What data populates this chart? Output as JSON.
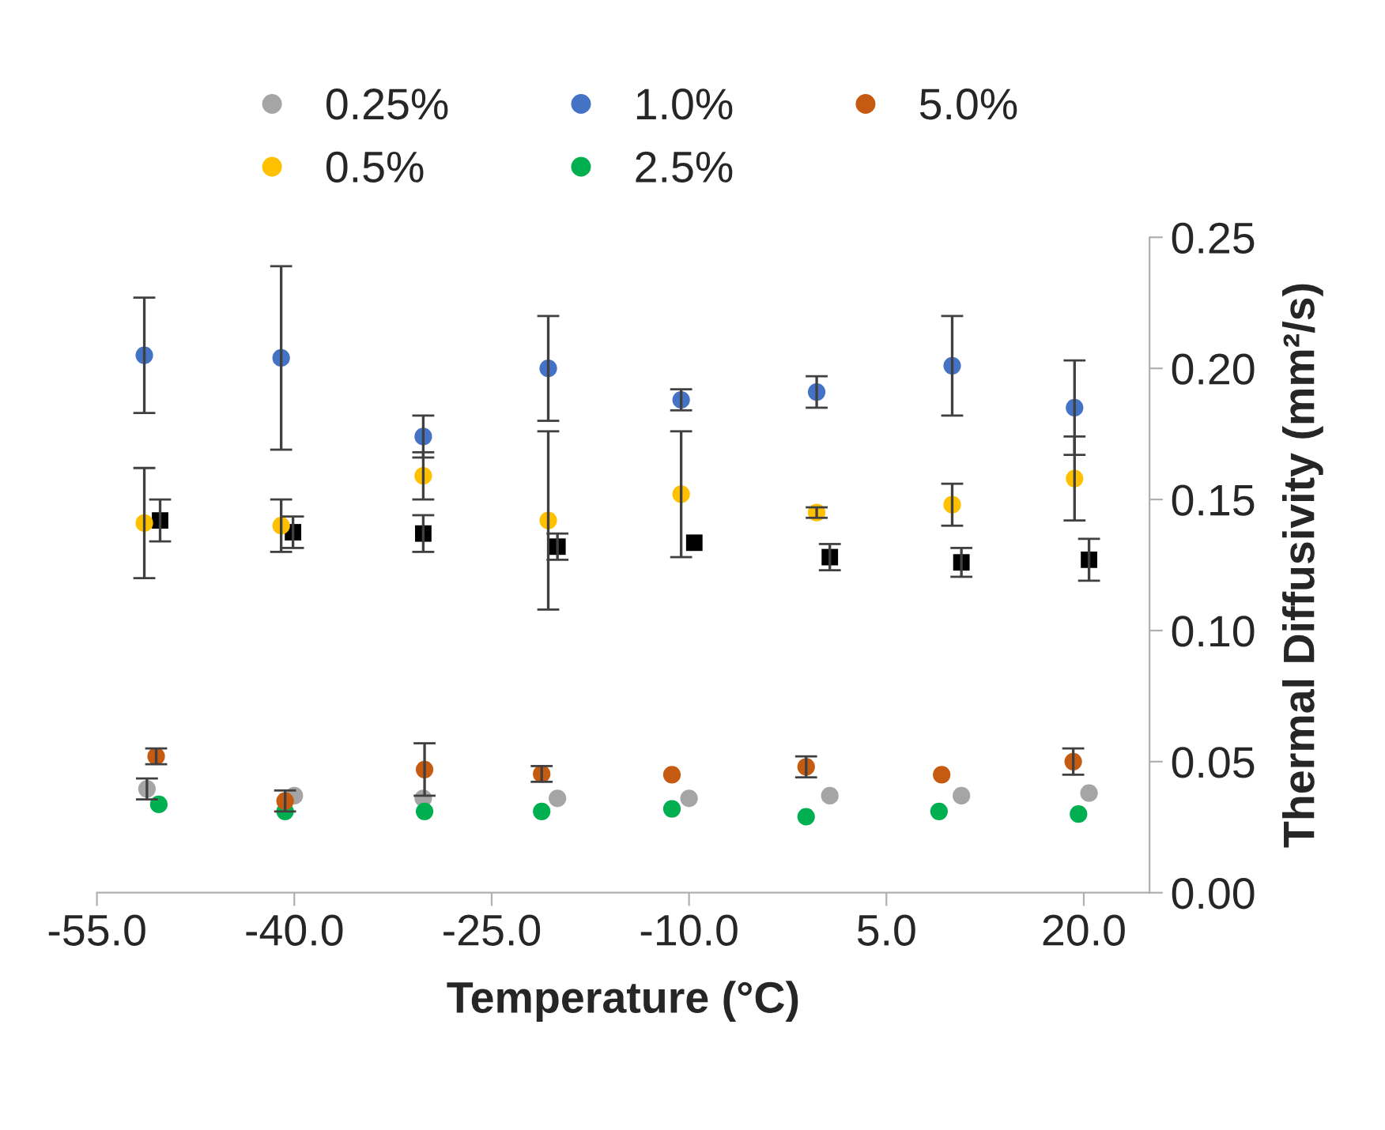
{
  "chart_data": {
    "type": "scatter",
    "xlabel": "Temperature (°C)",
    "ylabel": "Thermal Diffusivity (mm²/s)",
    "xlim": [
      -55,
      25
    ],
    "xticks": [
      {
        "value": -55,
        "label": "-55.0"
      },
      {
        "value": -40,
        "label": "-40.0"
      },
      {
        "value": -25,
        "label": "-25.0"
      },
      {
        "value": -10,
        "label": "-10.0"
      },
      {
        "value": 5,
        "label": "5.0"
      },
      {
        "value": 20,
        "label": "20.0"
      }
    ],
    "ylim": [
      0,
      0.25
    ],
    "yticks": [
      {
        "value": 0,
        "label": "0.00"
      },
      {
        "value": 0.05,
        "label": "0.05"
      },
      {
        "value": 0.1,
        "label": "0.10"
      },
      {
        "value": 0.15,
        "label": "0.15"
      },
      {
        "value": 0.2,
        "label": "0.20"
      },
      {
        "value": 0.25,
        "label": "0.25"
      }
    ],
    "grid": false,
    "legend": "top",
    "series": [
      {
        "color": "#000000",
        "marker": "square",
        "x": [
          -50.2,
          -40.1,
          -30.2,
          -20.0,
          -9.6,
          0.7,
          10.7,
          20.4
        ],
        "values": [
          0.142,
          0.1375,
          0.137,
          0.132,
          0.1335,
          0.128,
          0.126,
          0.127
        ],
        "errors": [
          0.008,
          0.006,
          0.007,
          0.005,
          null,
          0.005,
          0.0055,
          0.008
        ]
      },
      {
        "name": "0.25%",
        "color": "#a5a5a5",
        "marker": "circle",
        "x": [
          -51.2,
          -40.0,
          -30.2,
          -20.0,
          -10.0,
          0.7,
          10.7,
          20.4
        ],
        "values": [
          0.0396,
          0.037,
          0.036,
          0.036,
          0.036,
          0.037,
          0.037,
          0.038
        ],
        "errors": [
          0.004,
          null,
          null,
          null,
          null,
          null,
          null,
          null
        ]
      },
      {
        "name": "0.5%",
        "color": "#ffc000",
        "marker": "circle",
        "x": [
          -51.4,
          -41.0,
          -30.2,
          -20.7,
          -10.6,
          -0.3,
          10.0,
          19.3
        ],
        "values": [
          0.141,
          0.14,
          0.159,
          0.142,
          0.152,
          0.145,
          0.148,
          0.158
        ],
        "errors": [
          0.021,
          0.01,
          0.009,
          0.034,
          0.024,
          0.002,
          0.008,
          0.016
        ]
      },
      {
        "name": "1.0%",
        "color": "#4472c4",
        "marker": "circle",
        "x": [
          -51.4,
          -41.0,
          -30.2,
          -20.7,
          -10.6,
          -0.3,
          10.0,
          19.3
        ],
        "values": [
          0.205,
          0.204,
          0.174,
          0.2,
          0.188,
          0.191,
          0.201,
          0.185
        ],
        "errors": [
          0.022,
          0.035,
          0.008,
          0.02,
          0.004,
          0.006,
          0.019,
          0.018
        ]
      },
      {
        "name": "2.5%",
        "color": "#00b050",
        "marker": "circle",
        "x": [
          -50.3,
          -40.7,
          -30.1,
          -21.2,
          -11.3,
          -1.1,
          9.0,
          19.6
        ],
        "values": [
          0.0337,
          0.031,
          0.031,
          0.031,
          0.032,
          0.029,
          0.031,
          0.03
        ]
      },
      {
        "name": "5.0%",
        "color": "#c55a11",
        "marker": "circle",
        "x": [
          -50.5,
          -40.7,
          -30.1,
          -21.2,
          -11.3,
          -1.1,
          9.2,
          19.2
        ],
        "values": [
          0.052,
          0.035,
          0.047,
          0.0453,
          0.045,
          0.048,
          0.045,
          0.05
        ],
        "errors": [
          0.003,
          0.004,
          0.01,
          0.003,
          null,
          0.004,
          null,
          0.005
        ]
      }
    ]
  }
}
